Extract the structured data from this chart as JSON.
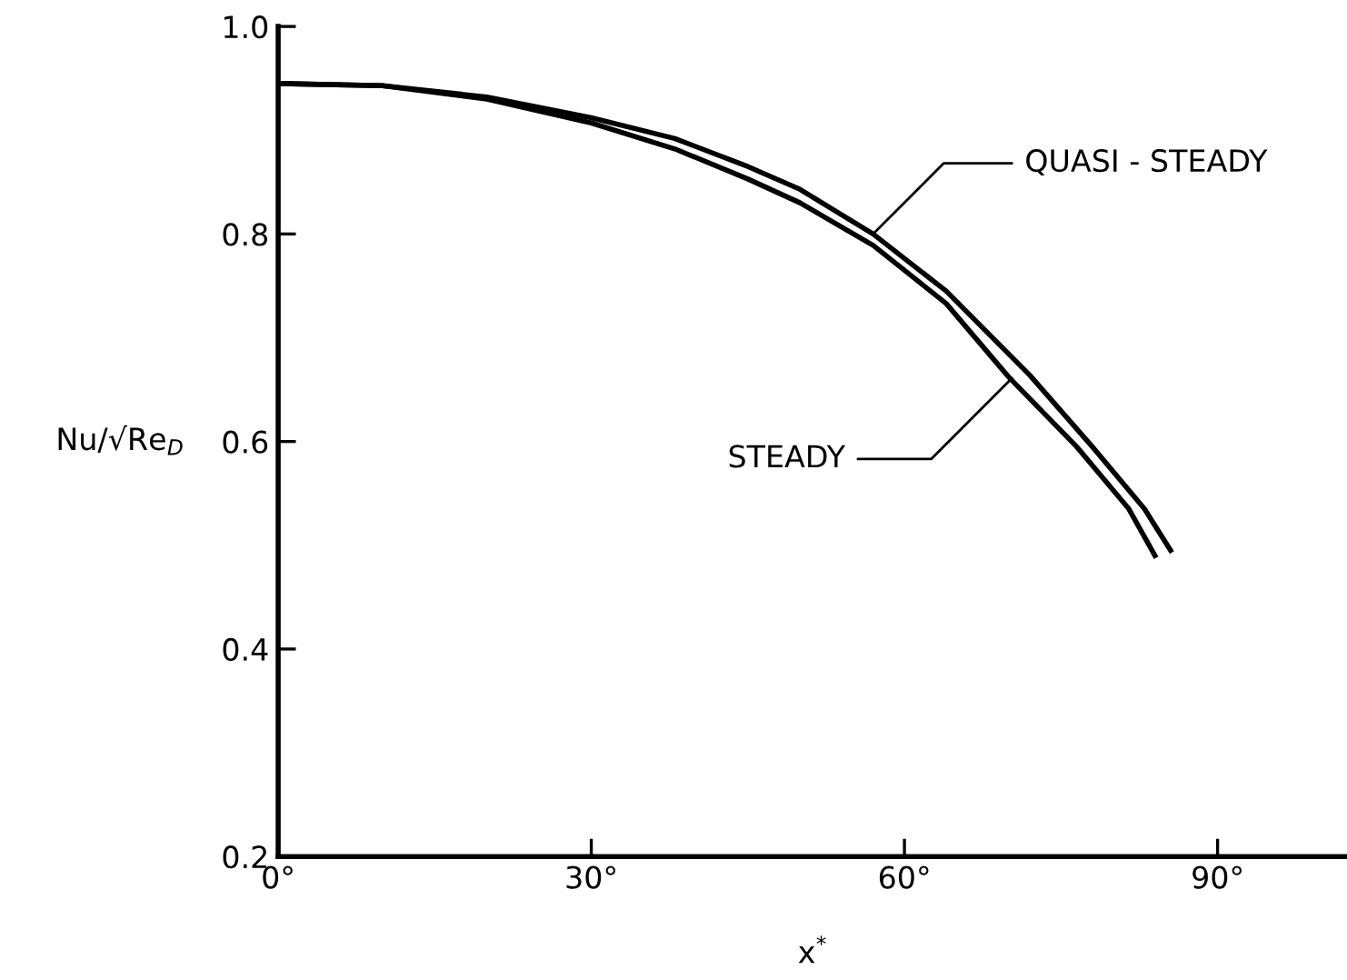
{
  "chart_data": {
    "type": "line",
    "xlabel": "x$^{*}$",
    "ylabel": "Nu/√Re$_{D}$",
    "xlim": [
      0,
      102.4
    ],
    "ylim": [
      0.2,
      1.0
    ],
    "xticks": [
      {
        "value": 0,
        "label": "0°"
      },
      {
        "value": 30,
        "label": "30°"
      },
      {
        "value": 60,
        "label": "60°"
      },
      {
        "value": 90,
        "label": "90°"
      }
    ],
    "yticks": [
      0.2,
      0.4,
      0.6,
      0.8,
      {
        "value": 1.0,
        "label": "1.0"
      }
    ],
    "grid": false,
    "marker": "none",
    "line_style": "solid",
    "series": [
      {
        "color": "#000000",
        "x": [
          0,
          10,
          20,
          30,
          38,
          45,
          50,
          57,
          64,
          72,
          78,
          83,
          85.5
        ],
        "values": [
          0.945,
          0.943,
          0.932,
          0.912,
          0.892,
          0.865,
          0.843,
          0.8,
          0.745,
          0.664,
          0.595,
          0.535,
          0.495
        ]
      },
      {
        "color": "#000000",
        "x": [
          0,
          10,
          20,
          30,
          38,
          45,
          50,
          57,
          64,
          70,
          76.5,
          81.5,
          84
        ],
        "values": [
          0.945,
          0.943,
          0.93,
          0.907,
          0.882,
          0.853,
          0.83,
          0.789,
          0.733,
          0.662,
          0.595,
          0.535,
          0.49
        ]
      }
    ],
    "annotations": [
      {
        "text": "QUASI - STEADY",
        "x": 57,
        "y": 0.8
      },
      {
        "text": "STEADY",
        "x": 70.3,
        "y": 0.661
      }
    ]
  }
}
